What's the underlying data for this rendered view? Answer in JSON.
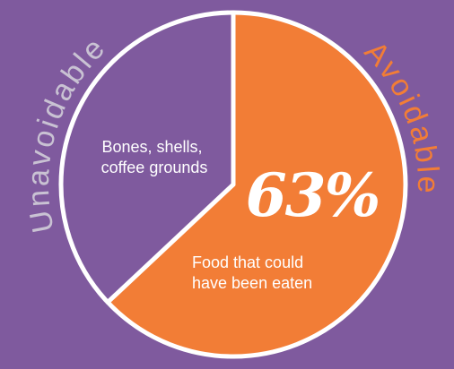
{
  "colors": {
    "background": "#7f5a9e",
    "avoidable": "#f27d36",
    "unavoidable": "#7f5a9e",
    "outline": "#ffffff",
    "unavoidable_label": "#c9c2d3",
    "avoidable_label": "#f27d36",
    "text": "#ffffff"
  },
  "chart_data": {
    "type": "pie",
    "labels": [
      "Avoidable",
      "Unavoidable"
    ],
    "values": [
      63,
      37
    ],
    "slice_text": {
      "avoidable": {
        "percent": "63%",
        "description_lines": [
          "Food that could",
          "have been eaten"
        ]
      },
      "unavoidable": {
        "description_lines": [
          "Bones, shells,",
          "coffee grounds"
        ]
      }
    }
  }
}
